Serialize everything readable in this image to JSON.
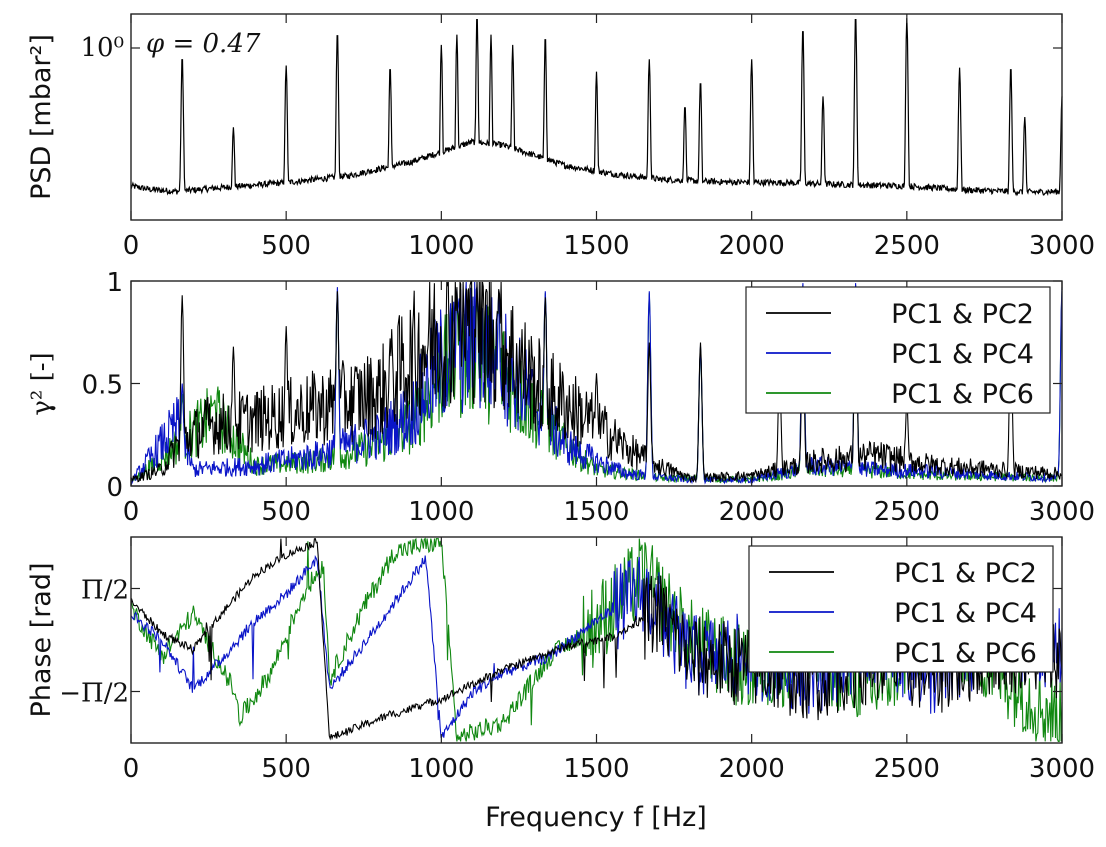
{
  "chart_data": [
    {
      "type": "line",
      "ylabel": "PSD [mbar²]",
      "annotation": "φ = 0.47",
      "yscale": "log",
      "ytick_labels": [
        "10⁰"
      ],
      "xlim": [
        0,
        3000
      ],
      "xticks": [
        0,
        500,
        1000,
        1500,
        2000,
        2500,
        3000
      ],
      "grid": false,
      "series": [
        {
          "color": "#000000",
          "baseline": [
            [
              0,
              0.5
            ],
            [
              60,
              0.45
            ],
            [
              150,
              0.42
            ],
            [
              300,
              0.48
            ],
            [
              500,
              0.55
            ],
            [
              700,
              0.65
            ],
            [
              900,
              0.85
            ],
            [
              1000,
              1.0
            ],
            [
              1100,
              1.15
            ],
            [
              1200,
              1.1
            ],
            [
              1300,
              0.95
            ],
            [
              1400,
              0.8
            ],
            [
              1550,
              0.68
            ],
            [
              1700,
              0.6
            ],
            [
              1900,
              0.56
            ],
            [
              2100,
              0.55
            ],
            [
              2300,
              0.52
            ],
            [
              2500,
              0.5
            ],
            [
              2700,
              0.44
            ],
            [
              2900,
              0.41
            ],
            [
              3000,
              0.42
            ]
          ],
          "peaks": [
            [
              165,
              0.8
            ],
            [
              330,
              0.45
            ],
            [
              500,
              0.75
            ],
            [
              665,
              0.92
            ],
            [
              835,
              0.75
            ],
            [
              1000,
              0.85
            ],
            [
              1050,
              0.9
            ],
            [
              1115,
              1.0
            ],
            [
              1160,
              0.9
            ],
            [
              1230,
              0.85
            ],
            [
              1335,
              0.9
            ],
            [
              1500,
              0.72
            ],
            [
              1670,
              0.78
            ],
            [
              1785,
              0.56
            ],
            [
              1835,
              0.68
            ],
            [
              2000,
              0.78
            ],
            [
              2165,
              0.94
            ],
            [
              2230,
              0.6
            ],
            [
              2335,
              1.0
            ],
            [
              2500,
              0.98
            ],
            [
              2670,
              0.74
            ],
            [
              2835,
              0.75
            ],
            [
              2880,
              0.5
            ],
            [
              3000,
              0.6
            ]
          ]
        }
      ]
    },
    {
      "type": "line",
      "ylabel": "γ² [-]",
      "xlim": [
        0,
        3000
      ],
      "ylim": [
        0,
        1
      ],
      "xticks": [
        0,
        500,
        1000,
        1500,
        2000,
        2500,
        3000
      ],
      "yticks": [
        0,
        0.5,
        1
      ],
      "ytick_labels": [
        "0",
        "0.5",
        "1"
      ],
      "legend": "top-right",
      "series": [
        {
          "name": "PC1 & PC2",
          "color": "#000000",
          "baseline": [
            [
              0,
              0.03
            ],
            [
              100,
              0.08
            ],
            [
              150,
              0.2
            ],
            [
              250,
              0.3
            ],
            [
              400,
              0.32
            ],
            [
              600,
              0.38
            ],
            [
              800,
              0.45
            ],
            [
              900,
              0.62
            ],
            [
              1000,
              0.75
            ],
            [
              1100,
              0.8
            ],
            [
              1200,
              0.7
            ],
            [
              1300,
              0.5
            ],
            [
              1400,
              0.4
            ],
            [
              1500,
              0.3
            ],
            [
              1600,
              0.18
            ],
            [
              1700,
              0.1
            ],
            [
              1800,
              0.04
            ],
            [
              2000,
              0.05
            ],
            [
              2200,
              0.12
            ],
            [
              2400,
              0.15
            ],
            [
              2600,
              0.1
            ],
            [
              2800,
              0.08
            ],
            [
              3000,
              0.06
            ]
          ],
          "peaks": [
            [
              165,
              0.93
            ],
            [
              330,
              0.68
            ],
            [
              500,
              0.78
            ],
            [
              665,
              0.95
            ],
            [
              835,
              0.72
            ],
            [
              1050,
              0.97
            ],
            [
              1115,
              0.99
            ],
            [
              1185,
              0.96
            ],
            [
              1335,
              0.92
            ],
            [
              1500,
              0.55
            ],
            [
              1670,
              0.7
            ],
            [
              1835,
              0.7
            ],
            [
              2090,
              0.55
            ],
            [
              2165,
              0.7
            ],
            [
              2335,
              0.9
            ],
            [
              2500,
              0.4
            ],
            [
              2835,
              0.7
            ]
          ]
        },
        {
          "name": "PC1 & PC4",
          "color": "#0a14c8",
          "baseline": [
            [
              0,
              0.02
            ],
            [
              150,
              0.3
            ],
            [
              200,
              0.08
            ],
            [
              400,
              0.1
            ],
            [
              600,
              0.15
            ],
            [
              800,
              0.25
            ],
            [
              900,
              0.35
            ],
            [
              1000,
              0.6
            ],
            [
              1100,
              0.7
            ],
            [
              1200,
              0.6
            ],
            [
              1300,
              0.4
            ],
            [
              1400,
              0.2
            ],
            [
              1500,
              0.12
            ],
            [
              1600,
              0.06
            ],
            [
              1800,
              0.03
            ],
            [
              2000,
              0.03
            ],
            [
              2200,
              0.1
            ],
            [
              2400,
              0.08
            ],
            [
              2600,
              0.07
            ],
            [
              2800,
              0.05
            ],
            [
              3000,
              0.04
            ]
          ],
          "peaks": [
            [
              165,
              0.5
            ],
            [
              665,
              0.97
            ],
            [
              1050,
              0.96
            ],
            [
              1115,
              0.97
            ],
            [
              1185,
              0.95
            ],
            [
              1335,
              0.95
            ],
            [
              1670,
              0.95
            ],
            [
              1835,
              0.68
            ],
            [
              2165,
              0.99
            ],
            [
              2335,
              0.99
            ],
            [
              3000,
              0.97
            ]
          ]
        },
        {
          "name": "PC1 & PC6",
          "color": "#118811",
          "baseline": [
            [
              0,
              0.02
            ],
            [
              150,
              0.2
            ],
            [
              270,
              0.35
            ],
            [
              400,
              0.1
            ],
            [
              600,
              0.12
            ],
            [
              800,
              0.2
            ],
            [
              900,
              0.3
            ],
            [
              1000,
              0.55
            ],
            [
              1100,
              0.65
            ],
            [
              1200,
              0.55
            ],
            [
              1300,
              0.35
            ],
            [
              1400,
              0.2
            ],
            [
              1500,
              0.08
            ],
            [
              1700,
              0.04
            ],
            [
              2000,
              0.03
            ],
            [
              2200,
              0.08
            ],
            [
              2400,
              0.07
            ],
            [
              2600,
              0.05
            ],
            [
              3000,
              0.04
            ]
          ],
          "peaks": [
            [
              165,
              0.45
            ],
            [
              270,
              0.42
            ],
            [
              665,
              0.95
            ],
            [
              1050,
              0.95
            ],
            [
              1115,
              0.96
            ],
            [
              1185,
              0.94
            ],
            [
              1335,
              0.94
            ],
            [
              1670,
              0.94
            ],
            [
              1835,
              0.67
            ],
            [
              2165,
              0.98
            ],
            [
              2335,
              0.98
            ],
            [
              3000,
              0.95
            ]
          ]
        }
      ]
    },
    {
      "type": "line",
      "ylabel": "Phase [rad]",
      "xlabel": "Frequency f [Hz]",
      "xlim": [
        0,
        3000
      ],
      "ylim": [
        -3.14159,
        3.14159
      ],
      "xticks": [
        0,
        500,
        1000,
        1500,
        2000,
        2500,
        3000
      ],
      "yticks": [
        1.5708,
        -1.5708
      ],
      "ytick_labels": [
        "Π/2",
        "−Π/2"
      ],
      "legend": "top-right",
      "series": [
        {
          "name": "PC1 & PC2",
          "color": "#000000",
          "baseline": [
            [
              0,
              1.2
            ],
            [
              100,
              0.2
            ],
            [
              200,
              -0.3
            ],
            [
              300,
              0.9
            ],
            [
              400,
              2.0
            ],
            [
              500,
              2.6
            ],
            [
              600,
              3.0
            ],
            [
              640,
              -3.0
            ],
            [
              800,
              -2.4
            ],
            [
              1000,
              -1.8
            ],
            [
              1200,
              -0.9
            ],
            [
              1400,
              -0.2
            ],
            [
              1550,
              0.1
            ],
            [
              1700,
              0.9
            ],
            [
              1800,
              -0.5
            ],
            [
              2000,
              -0.8
            ],
            [
              2200,
              -1.2
            ],
            [
              2400,
              -0.6
            ],
            [
              2600,
              -1.0
            ],
            [
              2800,
              -0.3
            ],
            [
              3000,
              -0.5
            ]
          ],
          "noise": 0.25,
          "noise_after": 1650
        },
        {
          "name": "PC1 & PC4",
          "color": "#0a14c8",
          "baseline": [
            [
              0,
              0.8
            ],
            [
              100,
              0.0
            ],
            [
              200,
              -1.5
            ],
            [
              300,
              -0.5
            ],
            [
              400,
              0.6
            ],
            [
              500,
              1.4
            ],
            [
              600,
              2.5
            ],
            [
              640,
              -1.5
            ],
            [
              800,
              0.5
            ],
            [
              950,
              2.5
            ],
            [
              1000,
              -3.0
            ],
            [
              1100,
              -1.6
            ],
            [
              1200,
              -1.0
            ],
            [
              1350,
              -0.5
            ],
            [
              1500,
              0.6
            ],
            [
              1650,
              1.5
            ],
            [
              1800,
              -0.5
            ],
            [
              2000,
              -0.5
            ],
            [
              2200,
              -1.0
            ],
            [
              2400,
              0.0
            ],
            [
              2600,
              -1.2
            ],
            [
              2800,
              0.2
            ],
            [
              3000,
              -0.3
            ]
          ],
          "noise": 0.35,
          "noise_after": 1550
        },
        {
          "name": "PC1 & PC6",
          "color": "#118811",
          "baseline": [
            [
              0,
              1.0
            ],
            [
              100,
              -0.5
            ],
            [
              200,
              0.8
            ],
            [
              330,
              -1.5
            ],
            [
              350,
              -2.4
            ],
            [
              450,
              -1.0
            ],
            [
              560,
              1.5
            ],
            [
              620,
              2.3
            ],
            [
              640,
              -1.2
            ],
            [
              750,
              1.0
            ],
            [
              850,
              2.7
            ],
            [
              1000,
              3.0
            ],
            [
              1050,
              -3.0
            ],
            [
              1200,
              -2.5
            ],
            [
              1350,
              -0.5
            ],
            [
              1500,
              0.5
            ],
            [
              1650,
              2.0
            ],
            [
              1800,
              0.0
            ],
            [
              2000,
              -1.0
            ],
            [
              2200,
              -0.5
            ],
            [
              2400,
              -1.5
            ],
            [
              2600,
              0.5
            ],
            [
              2800,
              -1.0
            ],
            [
              3000,
              -2.5
            ]
          ],
          "noise": 0.6,
          "noise_after": 1450
        }
      ]
    }
  ]
}
